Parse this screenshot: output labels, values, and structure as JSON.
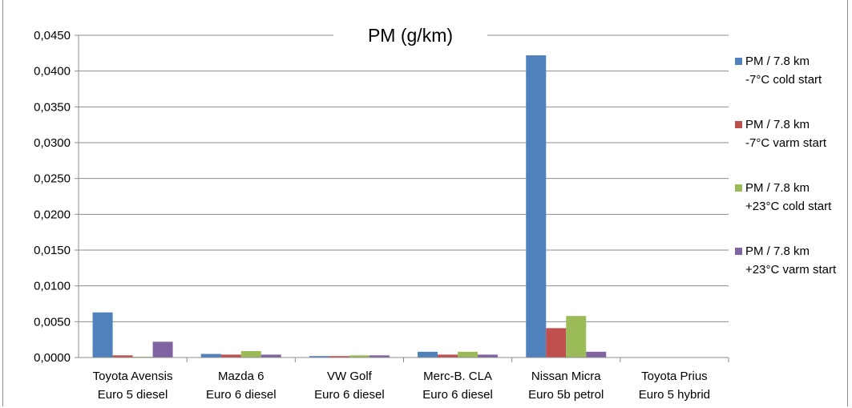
{
  "chart_data": {
    "type": "bar",
    "title": "PM (g/km)",
    "xlabel": "",
    "ylabel": "",
    "ylim": [
      0,
      0.045
    ],
    "yticks": [
      "0,0000",
      "0,0050",
      "0,0100",
      "0,0150",
      "0,0200",
      "0,0250",
      "0,0300",
      "0,0350",
      "0,0400",
      "0,0450"
    ],
    "grid": true,
    "legend_position": "right",
    "categories": [
      [
        "Toyota Avensis",
        "Euro 5 diesel"
      ],
      [
        "Mazda 6",
        "Euro 6 diesel"
      ],
      [
        "VW Golf",
        "Euro 6 diesel"
      ],
      [
        "Merc-B. CLA",
        "Euro 6 diesel"
      ],
      [
        "Nissan Micra",
        "Euro 5b petrol"
      ],
      [
        "Toyota Prius",
        "Euro 5 hybrid"
      ]
    ],
    "series": [
      {
        "name": [
          "PM / 7.8 km",
          "-7°C cold start"
        ],
        "color": "#4f81bd",
        "values": [
          0.0063,
          0.0005,
          0.0002,
          0.0008,
          0.0422,
          0.0
        ]
      },
      {
        "name": [
          "PM  / 7.8 km",
          "-7°C varm start"
        ],
        "color": "#c0504d",
        "values": [
          0.0003,
          0.0004,
          0.0002,
          0.0004,
          0.0041,
          0.0
        ]
      },
      {
        "name": [
          "PM / 7.8 km",
          "+23°C cold start"
        ],
        "color": "#9bbb59",
        "values": [
          0.0001,
          0.0009,
          0.0003,
          0.0008,
          0.0058,
          0.0
        ]
      },
      {
        "name": [
          "PM / 7.8 km",
          "+23°C varm start"
        ],
        "color": "#8064a2",
        "values": [
          0.0022,
          0.0004,
          0.0003,
          0.0004,
          0.0008,
          0.0
        ]
      }
    ]
  }
}
